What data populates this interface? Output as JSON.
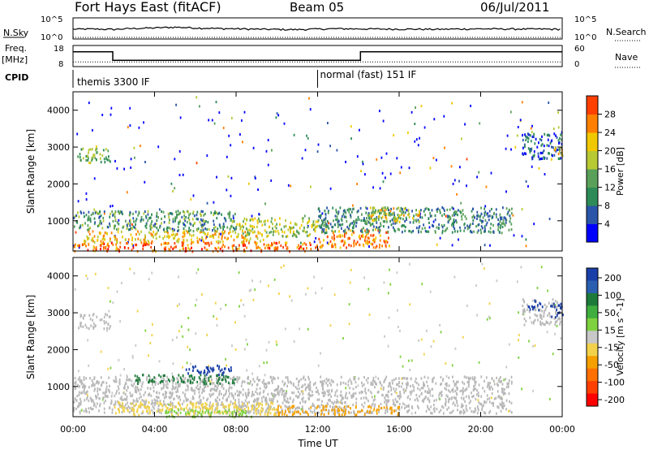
{
  "header": {
    "station": "Fort Hays East (fitACF)",
    "beam": "Beam 05",
    "date": "06/Jul/2011"
  },
  "left_labels": {
    "nsky": "N.Sky",
    "freq_line1": "Freq.",
    "freq_line2": "[MHz]",
    "cpid": "CPID"
  },
  "right_labels": {
    "nsearch": "N.Search",
    "nave": "Nave"
  },
  "strip_ticks": {
    "nsky_top": "10^5",
    "nsky_bottom": "10^0",
    "nsearch_top": "10^5",
    "nsearch_bottom": "10^0",
    "freq_top": "18",
    "freq_bottom": "8",
    "nave_top": "60",
    "nave_bottom": "0"
  },
  "cpid_modes": [
    {
      "label": "themis 3300 IF",
      "start_hour": 0
    },
    {
      "label": "normal (fast) 151 IF",
      "start_hour": 12
    }
  ],
  "colors": {
    "power_scale": [
      "#0000ff",
      "#2a55a8",
      "#2e8b57",
      "#5aa05a",
      "#b7c933",
      "#f0c800",
      "#ff8000",
      "#ff4000",
      "#ff0000"
    ],
    "velocity_scale": [
      "#1a3fa8",
      "#2a5fb0",
      "#1e7a3a",
      "#3fae3f",
      "#7fd23f",
      "#c8c8c8",
      "#f2d24a",
      "#f5a000",
      "#ff7000",
      "#ff4000",
      "#ff0000"
    ],
    "ground_scatter": "#b8b8b8"
  },
  "chart_data": [
    {
      "type": "line",
      "title": "N.Sky / N.Search",
      "x": [
        0,
        1,
        2,
        3,
        4,
        5,
        6,
        7,
        8,
        9,
        10,
        11,
        12,
        13,
        14,
        15,
        16,
        17,
        18,
        19,
        20,
        21,
        22,
        23,
        24
      ],
      "series": [
        {
          "name": "N.Sky",
          "values": [
            200,
            220,
            180,
            300,
            400,
            600,
            400,
            300,
            250,
            200,
            180,
            160,
            220,
            260,
            240,
            220,
            210,
            200,
            190,
            220,
            240,
            230,
            220,
            210,
            200
          ]
        },
        {
          "name": "N.Search",
          "values": [
            1,
            1,
            1,
            1,
            1,
            1,
            1,
            1,
            1,
            1,
            1,
            1,
            1,
            1,
            1,
            1,
            1,
            1,
            1,
            1,
            1,
            1,
            1,
            1,
            1
          ]
        }
      ],
      "ylim": [
        1,
        100000
      ],
      "yscale": "log"
    },
    {
      "type": "line",
      "title": "Freq. / Nave",
      "x": [
        0,
        1.95,
        1.95,
        14.1,
        14.1,
        24
      ],
      "series": [
        {
          "name": "Freq.",
          "values": [
            15,
            15,
            11,
            11,
            15,
            15
          ]
        },
        {
          "name": "Nave",
          "values": [
            22,
            22,
            22,
            22,
            22,
            22
          ]
        }
      ],
      "ylim": [
        8,
        18
      ]
    },
    {
      "type": "heatmap",
      "title": "Power [dB]",
      "xlabel": "",
      "ylabel": "Slant Range [km]",
      "x_ticks": [
        "00:00",
        "04:00",
        "08:00",
        "12:00",
        "16:00",
        "20:00",
        "00:00"
      ],
      "xlim": [
        0,
        24
      ],
      "y_ticks": [
        1000,
        2000,
        3000,
        4000
      ],
      "ylim": [
        180,
        4500
      ],
      "colorbar_label": "Power [dB]",
      "colorbar_ticks": [
        4,
        8,
        12,
        16,
        20,
        24,
        28
      ],
      "regions": [
        {
          "t0": 0.0,
          "t1": 12.0,
          "r0": 200,
          "r1": 450,
          "level": 28
        },
        {
          "t0": 0.5,
          "t1": 9.5,
          "r0": 450,
          "r1": 750,
          "level": 22
        },
        {
          "t0": 0.0,
          "t1": 8.0,
          "r0": 750,
          "r1": 1300,
          "level": 12
        },
        {
          "t0": 8.0,
          "t1": 12.0,
          "r0": 600,
          "r1": 1100,
          "level": 18
        },
        {
          "t0": 12.0,
          "t1": 15.5,
          "r0": 300,
          "r1": 800,
          "level": 26
        },
        {
          "t0": 12.0,
          "t1": 21.5,
          "r0": 700,
          "r1": 1400,
          "level": 10
        },
        {
          "t0": 14.5,
          "t1": 17.0,
          "r0": 1000,
          "r1": 1400,
          "level": 20
        },
        {
          "t0": 0.2,
          "t1": 1.8,
          "r0": 2600,
          "r1": 3000,
          "level": 14
        },
        {
          "t0": 22.0,
          "t1": 24.0,
          "r0": 2700,
          "r1": 3400,
          "level": 6
        },
        {
          "t0": 23.5,
          "t1": 24.0,
          "r0": 2800,
          "r1": 3100,
          "level": 24
        }
      ]
    },
    {
      "type": "heatmap",
      "title": "Velocity [m s^-1]",
      "xlabel": "Time UT",
      "ylabel": "Slant Range [km]",
      "x_ticks": [
        "00:00",
        "04:00",
        "08:00",
        "12:00",
        "16:00",
        "20:00",
        "00:00"
      ],
      "xlim": [
        0,
        24
      ],
      "y_ticks": [
        1000,
        2000,
        3000,
        4000
      ],
      "ylim": [
        180,
        4500
      ],
      "colorbar_label": "Velocity [m s^-1]",
      "colorbar_ticks": [
        200,
        100,
        50,
        15,
        -15,
        -50,
        -100,
        -200
      ],
      "regions": [
        {
          "t0": 0.0,
          "t1": 21.5,
          "r0": 300,
          "r1": 1300,
          "level": 0,
          "ground": true
        },
        {
          "t0": 2.0,
          "t1": 10.0,
          "r0": 250,
          "r1": 600,
          "level": -40
        },
        {
          "t0": 10.0,
          "t1": 16.0,
          "r0": 250,
          "r1": 500,
          "level": -60
        },
        {
          "t0": 3.0,
          "t1": 8.0,
          "r0": 1100,
          "r1": 1350,
          "level": 60
        },
        {
          "t0": 5.5,
          "t1": 7.8,
          "r0": 1350,
          "r1": 1600,
          "level": 200
        },
        {
          "t0": 4.5,
          "t1": 9.0,
          "r0": 200,
          "r1": 400,
          "level": 40
        },
        {
          "t0": 0.2,
          "t1": 1.8,
          "r0": 2600,
          "r1": 3000,
          "level": 0,
          "ground": true
        },
        {
          "t0": 22.0,
          "t1": 24.0,
          "r0": 2700,
          "r1": 3400,
          "level": 0,
          "ground": true
        },
        {
          "t0": 22.3,
          "t1": 23.0,
          "r0": 3100,
          "r1": 3400,
          "level": 200
        },
        {
          "t0": 23.4,
          "t1": 24.0,
          "r0": 2900,
          "r1": 3300,
          "level": 200
        }
      ]
    }
  ]
}
